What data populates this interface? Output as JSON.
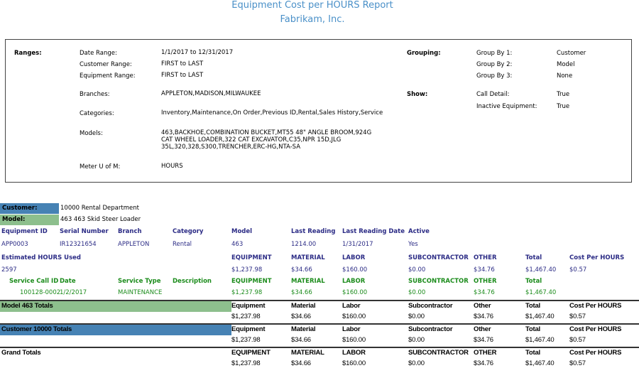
{
  "header": {
    "title": "Equipment Cost per HOURS Report",
    "company": "Fabrikam, Inc."
  },
  "criteria": {
    "ranges_label": "Ranges:",
    "grouping_label": "Grouping:",
    "show_label": "Show:",
    "ranges": [
      {
        "label": "Date Range:",
        "value": "1/1/2017 to 12/31/2017"
      },
      {
        "label": "Customer Range:",
        "value": "FIRST to LAST"
      },
      {
        "label": "Equipment Range:",
        "value": "FIRST to LAST"
      },
      {
        "label": "Branches:",
        "value": "APPLETON,MADISON,MILWAUKEE"
      },
      {
        "label": "Categories:",
        "value": "Inventory,Maintenance,On Order,Previous ID,Rental,Sales History,Service"
      },
      {
        "label": "Models:",
        "value": "463,BACKHOE,COMBINATION BUCKET,MT55 48\" ANGLE BROOM,924G\nCAT WHEEL LOADER,322 CAT EXCAVATOR,C35,NPR 15D,JLG\n35L,320,328,S300,TRENCHER,ERC-HG,NTA-SA"
      },
      {
        "label": "Meter U of M:",
        "value": "HOURS"
      }
    ],
    "grouping": [
      {
        "label": "Group By 1:",
        "value": "Customer"
      },
      {
        "label": "Group By 2:",
        "value": "Model"
      },
      {
        "label": "Group By 3:",
        "value": "None"
      }
    ],
    "show": [
      {
        "label": "Call Detail:",
        "value": "True"
      },
      {
        "label": "Inactive Equipment:",
        "value": "True"
      }
    ]
  },
  "groups": {
    "customer_label": "Customer:",
    "customer_value": "10000 Rental Department",
    "model_label": "Model:",
    "model_value": "463 463 Skid Steer Loader"
  },
  "rows": [
    {
      "style": "navy b",
      "cells": [
        "Equipment ID",
        "Serial Number",
        "Branch",
        "Category",
        "Model",
        "Last Reading",
        "Last Reading Date",
        "Active"
      ],
      "cols": [
        0,
        1,
        2,
        3,
        4,
        5,
        6,
        7
      ]
    },
    {
      "style": "navy",
      "cells": [
        "APP0003",
        "IR12321654",
        "APPLETON",
        "Rental",
        "463",
        "1214.00",
        "1/31/2017",
        "Yes"
      ],
      "cols": [
        0,
        1,
        2,
        3,
        4,
        5,
        6,
        7
      ]
    },
    {
      "style": "navy b",
      "cells": [
        "Estimated HOURS Used",
        "EQUIPMENT",
        "MATERIAL",
        "LABOR",
        "SUBCONTRACTOR",
        "OTHER",
        "Total",
        "Cost Per HOURS"
      ],
      "cols": [
        0,
        4,
        5,
        6,
        7,
        8,
        9,
        10
      ]
    },
    {
      "style": "navy",
      "cells": [
        "2597",
        "$1,237.98",
        "$34.66",
        "$160.00",
        "$0.00",
        "$34.76",
        "$1,467.40",
        "$0.57"
      ],
      "cols": [
        0,
        4,
        5,
        6,
        7,
        8,
        9,
        10
      ]
    },
    {
      "style": "green b",
      "cells": [
        "Service Call ID",
        "Date",
        "Service Type",
        "Description",
        "EQUIPMENT",
        "MATERIAL",
        "LABOR",
        "SUBCONTRACTOR",
        "OTHER",
        "Total"
      ],
      "cols": [
        11,
        1,
        2,
        3,
        4,
        5,
        6,
        7,
        8,
        9
      ]
    },
    {
      "style": "green",
      "cells": [
        "100128-0002",
        "1/2/2017",
        "MAINTENANCE",
        "",
        "$1,237.98",
        "$34.66",
        "$160.00",
        "$0.00",
        "$34.76",
        "$1,467.40"
      ],
      "cols": [
        12,
        1,
        2,
        3,
        4,
        5,
        6,
        7,
        8,
        9
      ]
    }
  ],
  "totals": [
    {
      "label": "Model 463 Totals",
      "band": "#8dbf8d",
      "headers": [
        "Equipment",
        "Material",
        "Labor",
        "Subcontractor",
        "Other",
        "Total",
        "Cost Per HOURS"
      ],
      "values": [
        "$1,237.98",
        "$34.66",
        "$160.00",
        "$0.00",
        "$34.76",
        "$1,467.40",
        "$0.57"
      ]
    },
    {
      "label": "Customer 10000 Totals",
      "band": "#4682b4",
      "headers": [
        "Equipment",
        "Material",
        "Labor",
        "Subcontractor",
        "Other",
        "Total",
        "Cost Per HOURS"
      ],
      "values": [
        "$1,237.98",
        "$34.66",
        "$160.00",
        "$0.00",
        "$34.76",
        "$1,467.40",
        "$0.57"
      ]
    },
    {
      "label": "Grand Totals",
      "band": "",
      "headers": [
        "EQUIPMENT",
        "MATERIAL",
        "LABOR",
        "SUBCONTRACTOR",
        "OTHER",
        "Total",
        "Cost Per HOURS"
      ],
      "values": [
        "$1,237.98",
        "$34.66",
        "$160.00",
        "$0.00",
        "$34.76",
        "$1,467.40",
        "$0.57"
      ]
    }
  ],
  "colors": {
    "title": "#4a90c8",
    "navy": "#2b2b85",
    "green": "#1c8c1c",
    "customer_band": "#4682b4",
    "model_band": "#8dbf8d"
  }
}
